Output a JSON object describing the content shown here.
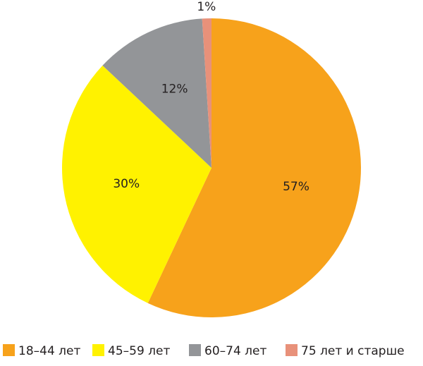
{
  "chart_data": {
    "type": "pie",
    "categories": [
      "18–44 лет",
      "45–59 лет",
      "60–74 лет",
      "75 лет и старше"
    ],
    "values": [
      57,
      30,
      12,
      1
    ],
    "value_labels": [
      "57%",
      "30%",
      "12%",
      "1%"
    ],
    "colors": [
      "#f7a21b",
      "#fff200",
      "#939598",
      "#e8917a"
    ]
  }
}
